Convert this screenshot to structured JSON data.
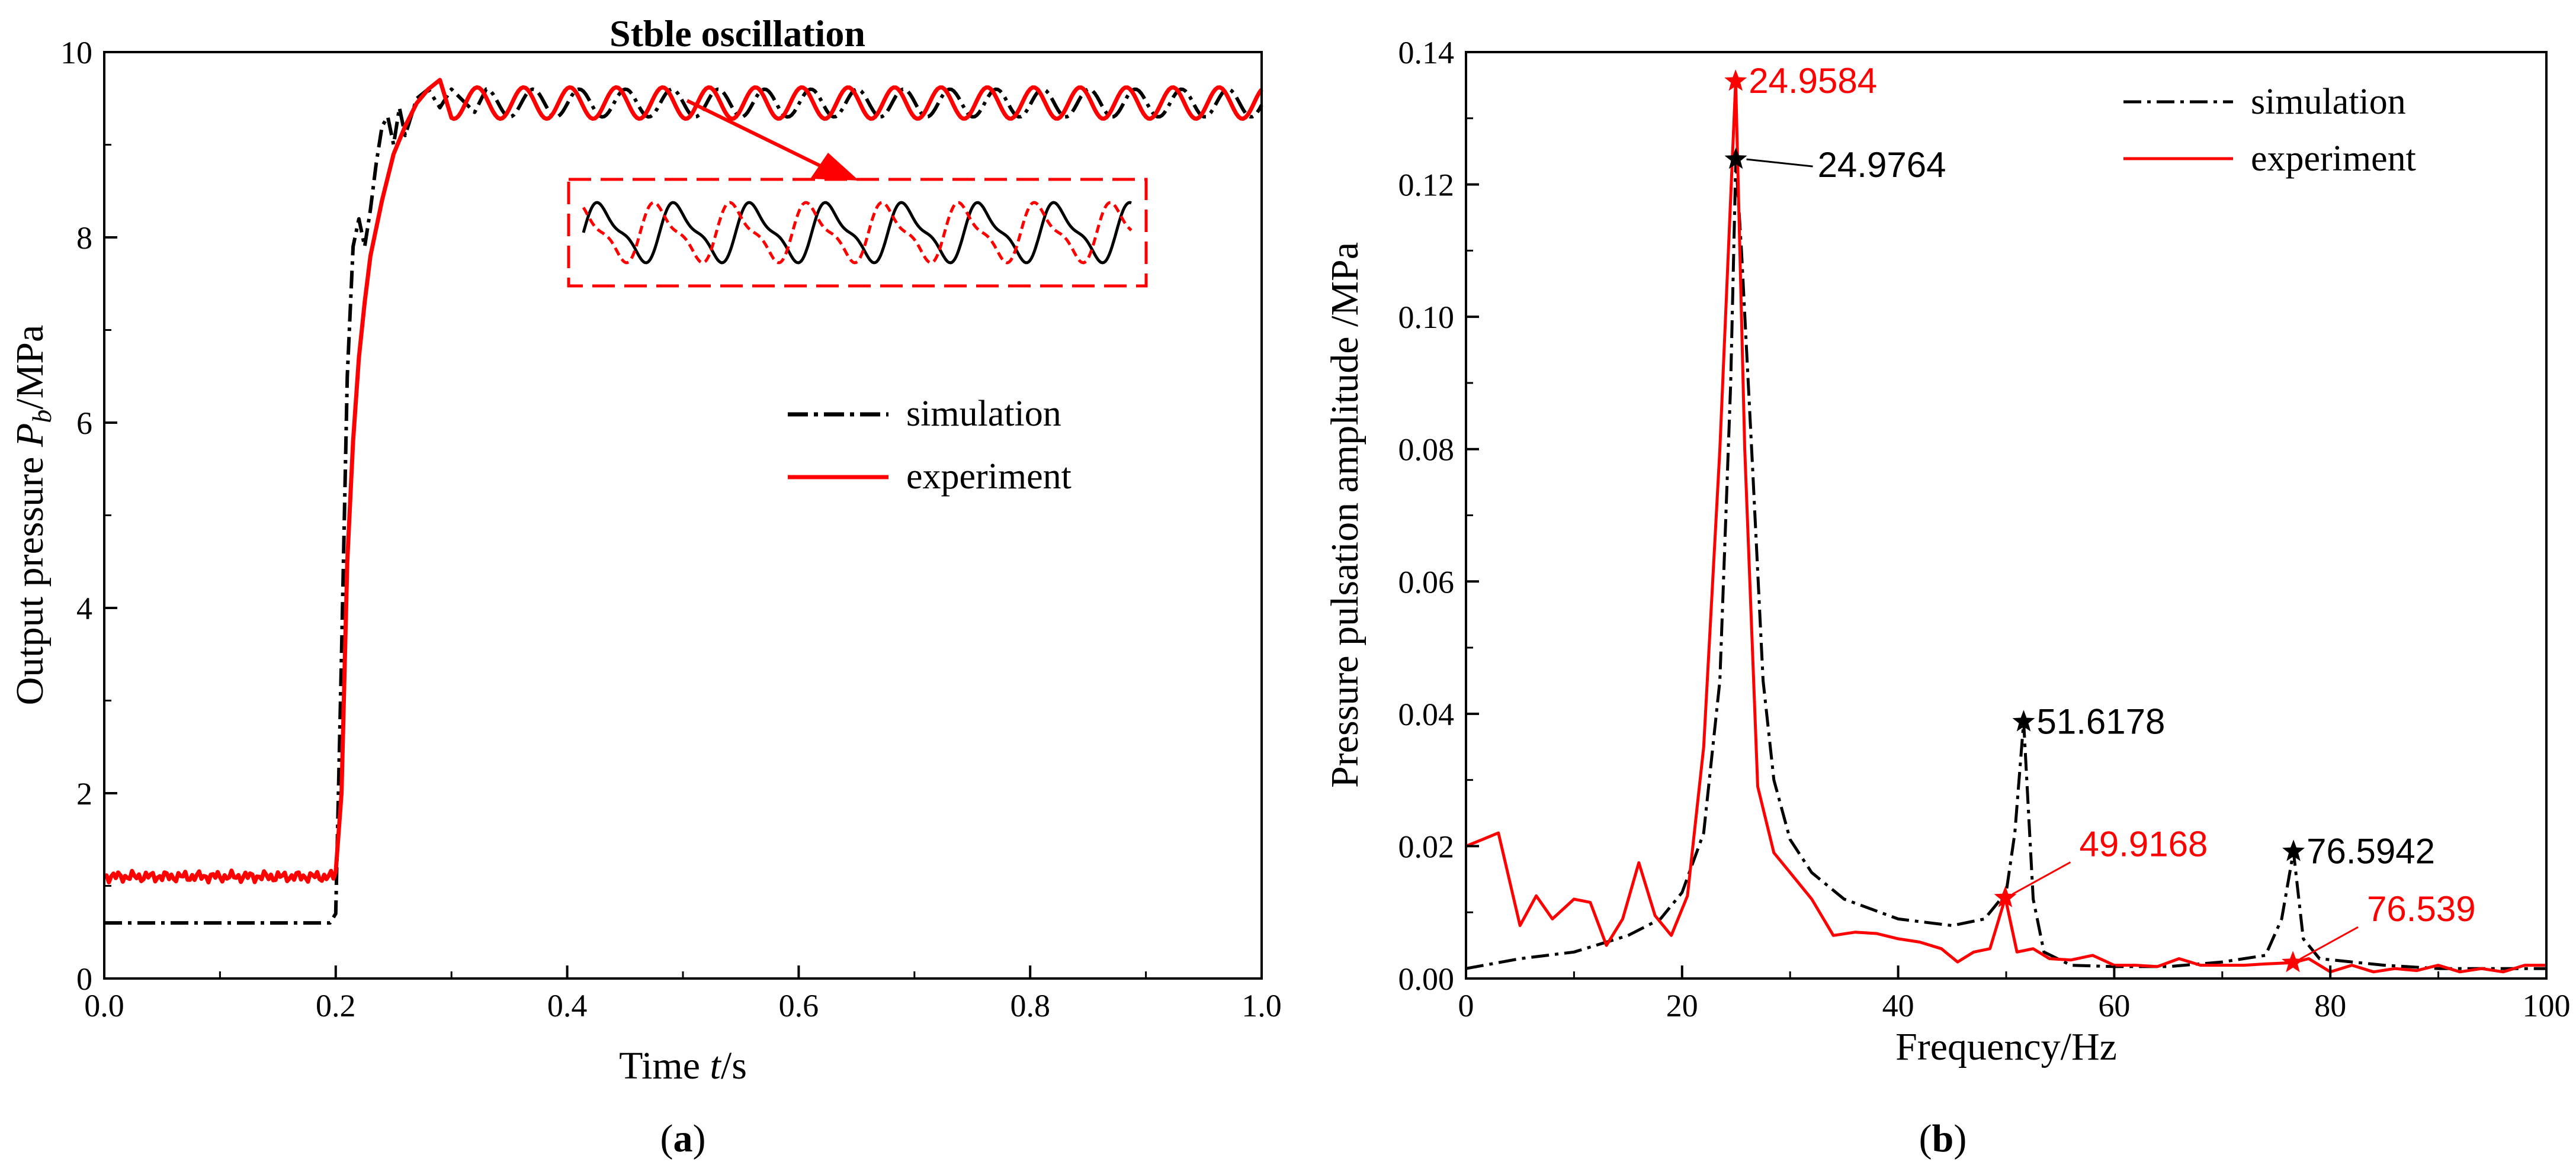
{
  "chart_data": [
    {
      "panel": "a",
      "type": "line",
      "caption_letter": "a",
      "title": "",
      "xlabel_prefix": "Time ",
      "xlabel_var": "t",
      "xlabel_suffix": "/s",
      "ylabel_prefix": "Output pressure ",
      "ylabel_var": "P",
      "ylabel_sub": "b",
      "ylabel_suffix": "/MPa",
      "xlim": [
        0,
        1.0
      ],
      "ylim": [
        0,
        10
      ],
      "xticks": [
        "0.0",
        "0.2",
        "0.4",
        "0.6",
        "0.8",
        "1.0"
      ],
      "yticks": [
        "0",
        "2",
        "4",
        "6",
        "8",
        "10"
      ],
      "grid": false,
      "legend_position": "center-right",
      "annotation": "Stble oscillation",
      "series": [
        {
          "name": "simulation",
          "style": "dash-dot",
          "color": "#000000",
          "x": [
            0.0,
            0.195,
            0.2,
            0.205,
            0.21,
            0.215,
            0.22,
            0.225,
            0.23,
            0.235,
            0.24,
            0.245,
            0.25,
            0.255,
            0.26,
            0.27,
            0.28,
            0.29,
            0.3,
            0.32,
            0.35,
            0.38,
            0.4,
            0.42,
            0.45,
            0.5,
            0.6,
            0.7,
            0.8,
            0.9,
            1.0
          ],
          "y": [
            0.6,
            0.6,
            0.7,
            3.5,
            6.5,
            7.9,
            8.2,
            7.9,
            8.3,
            8.8,
            9.2,
            9.3,
            9.0,
            9.4,
            9.1,
            9.5,
            9.6,
            9.4,
            9.6,
            9.35,
            9.5,
            9.35,
            9.5,
            9.4,
            9.5,
            9.45,
            9.45,
            9.45,
            9.45,
            9.45,
            9.45
          ],
          "oscillation": {
            "from": 0.33,
            "mean": 9.45,
            "amplitude": 0.15,
            "frequency_hz": 24.9764
          }
        },
        {
          "name": "experiment",
          "style": "solid",
          "color": "#ff0000",
          "x": [
            0.0,
            0.2,
            0.205,
            0.21,
            0.215,
            0.22,
            0.225,
            0.23,
            0.24,
            0.25,
            0.26,
            0.27,
            0.28,
            0.29,
            0.3,
            0.32,
            0.35,
            0.4,
            0.5,
            0.6,
            0.7,
            0.8,
            0.9,
            1.0
          ],
          "y": [
            1.1,
            1.15,
            2.0,
            4.5,
            5.8,
            6.7,
            7.3,
            7.8,
            8.4,
            8.9,
            9.2,
            9.45,
            9.6,
            9.7,
            9.75,
            9.65,
            9.55,
            9.45,
            9.4,
            9.4,
            9.4,
            9.4,
            9.4,
            9.4
          ],
          "oscillation": {
            "from": 0.3,
            "mean": 9.45,
            "amplitude": 0.17,
            "frequency_hz": 24.9584
          }
        }
      ]
    },
    {
      "panel": "b",
      "type": "line",
      "caption_letter": "b",
      "title": "",
      "xlabel": "Frequency/Hz",
      "ylabel": "Pressure pulsation amplitude /MPa",
      "xlim": [
        0,
        100
      ],
      "ylim": [
        0,
        0.14
      ],
      "xticks": [
        "0",
        "20",
        "40",
        "60",
        "80",
        "100"
      ],
      "yticks": [
        "0.00",
        "0.02",
        "0.04",
        "0.06",
        "0.08",
        "0.10",
        "0.12",
        "0.14"
      ],
      "grid": false,
      "legend_position": "top-right",
      "series": [
        {
          "name": "simulation",
          "style": "dash-dot",
          "color": "#000000",
          "x": [
            0,
            5,
            10,
            15,
            18,
            20,
            22,
            23.5,
            24.5,
            24.98,
            25.5,
            26.5,
            27.5,
            28.5,
            30,
            32,
            35,
            40,
            45,
            48,
            50,
            50.8,
            51.62,
            52.5,
            53.5,
            56,
            60,
            65,
            70,
            74,
            75.5,
            76.59,
            77.5,
            79,
            85,
            90,
            95,
            100
          ],
          "y": [
            0.0015,
            0.003,
            0.004,
            0.0065,
            0.009,
            0.013,
            0.022,
            0.045,
            0.09,
            0.1238,
            0.11,
            0.078,
            0.045,
            0.03,
            0.021,
            0.016,
            0.012,
            0.009,
            0.008,
            0.009,
            0.013,
            0.022,
            0.0388,
            0.012,
            0.004,
            0.002,
            0.0018,
            0.0018,
            0.0025,
            0.0035,
            0.009,
            0.0192,
            0.006,
            0.003,
            0.002,
            0.0015,
            0.0015,
            0.0015
          ]
        },
        {
          "name": "experiment",
          "style": "solid",
          "color": "#ff0000",
          "x": [
            0,
            1.5,
            3,
            5,
            6.5,
            8,
            10,
            11.5,
            13,
            14.5,
            16,
            17.5,
            19,
            20.5,
            22,
            23.5,
            24.96,
            25.8,
            27,
            28.5,
            30,
            32,
            34,
            36,
            38,
            40,
            42,
            44,
            45.5,
            47,
            48.5,
            49.92,
            51,
            52.5,
            54,
            56,
            58,
            60,
            62,
            64,
            66,
            68,
            70,
            72,
            74,
            76.54,
            78,
            80,
            82,
            84,
            86,
            88,
            90,
            92,
            94,
            96,
            98,
            100
          ],
          "y": [
            0.02,
            0.021,
            0.022,
            0.008,
            0.0125,
            0.009,
            0.012,
            0.0115,
            0.005,
            0.009,
            0.0175,
            0.0095,
            0.0065,
            0.0125,
            0.035,
            0.08,
            0.1356,
            0.08,
            0.029,
            0.019,
            0.016,
            0.012,
            0.0065,
            0.007,
            0.0068,
            0.006,
            0.0055,
            0.0045,
            0.0025,
            0.004,
            0.0045,
            0.0122,
            0.004,
            0.0045,
            0.003,
            0.0028,
            0.0035,
            0.002,
            0.002,
            0.0018,
            0.003,
            0.002,
            0.002,
            0.002,
            0.0022,
            0.0024,
            0.003,
            0.001,
            0.002,
            0.001,
            0.0015,
            0.0012,
            0.002,
            0.001,
            0.0015,
            0.001,
            0.002,
            0.002
          ]
        }
      ],
      "peaks": [
        {
          "label": "24.9584",
          "x": 24.9584,
          "y": 0.1356,
          "color": "#ff0000",
          "leader": false,
          "label_side": "right"
        },
        {
          "label": "24.9764",
          "x": 24.9764,
          "y": 0.1238,
          "color": "#000000",
          "leader": true,
          "label_side": "right"
        },
        {
          "label": "51.6178",
          "x": 51.6178,
          "y": 0.0388,
          "color": "#000000",
          "leader": false,
          "label_side": "right"
        },
        {
          "label": "49.9168",
          "x": 49.9168,
          "y": 0.0122,
          "color": "#ff0000",
          "leader": true,
          "label_side": "upper-right"
        },
        {
          "label": "76.5942",
          "x": 76.5942,
          "y": 0.0192,
          "color": "#000000",
          "leader": false,
          "label_side": "right"
        },
        {
          "label": "76.539",
          "x": 76.539,
          "y": 0.0024,
          "color": "#ff0000",
          "leader": true,
          "label_side": "upper-right"
        }
      ]
    }
  ]
}
